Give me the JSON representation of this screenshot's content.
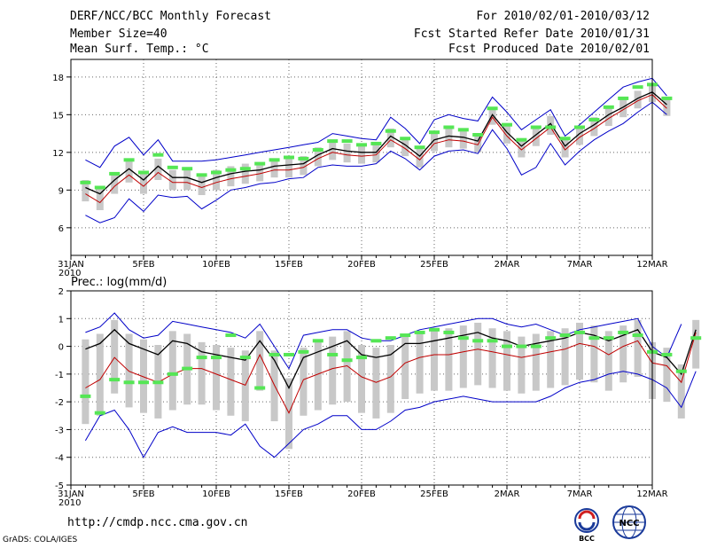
{
  "header": {
    "title": "DERF/NCC/BCC Monthly Forecast",
    "member_size": "Member Size=40",
    "variable": "Mean Surf. Temp.: °C",
    "period": "For 2010/02/01-2010/03/12",
    "started": "Fcst Started Refer Date 2010/01/31",
    "produced": "Fcst Produced Date 2010/02/01"
  },
  "footer": {
    "url": "http://cmdp.ncc.cma.gov.cn",
    "grads": "GrADS: COLA/IGES",
    "logo_bcc": "BCC",
    "logo_ncc": "NCC"
  },
  "colors": {
    "mean": "#000000",
    "median": "#c00000",
    "bounds": "#0000c8",
    "box": "#c8c8c8",
    "obs": "#55e655",
    "grid": "#666666"
  },
  "chart_data": [
    {
      "type": "line",
      "title": "",
      "ylabel": "Mean Surf. Temp.: °C",
      "ylim": [
        3.8,
        19.4
      ],
      "yticks": [
        6,
        9,
        12,
        15,
        18
      ],
      "x": "days from 2010-01-31 (0..40)",
      "xticks": [
        0,
        5,
        10,
        15,
        20,
        25,
        30,
        35,
        40
      ],
      "xtick_labels": [
        "31JAN",
        "5FEB",
        "10FEB",
        "15FEB",
        "20FEB",
        "25FEB",
        "2MAR",
        "7MAR",
        "12MAR"
      ],
      "xtick_year": "2010",
      "series": [
        {
          "name": "ensemble max",
          "color": "blue",
          "start": 1,
          "values": [
            11.4,
            10.8,
            12.5,
            13.2,
            11.8,
            13.0,
            11.3,
            11.3,
            11.3,
            11.4,
            11.6,
            11.8,
            12.0,
            12.2,
            12.4,
            12.6,
            12.8,
            13.5,
            13.3,
            13.1,
            13.0,
            14.8,
            13.9,
            12.7,
            14.6,
            15.0,
            14.7,
            14.5,
            16.4,
            15.2,
            13.8,
            14.6,
            15.4,
            13.3,
            14.2,
            15.2,
            16.2,
            17.2,
            17.6,
            17.9,
            16.5
          ]
        },
        {
          "name": "ensemble mean",
          "color": "black",
          "start": 1,
          "values": [
            9.2,
            8.7,
            9.8,
            10.7,
            9.8,
            10.9,
            10.0,
            10.0,
            9.6,
            10.0,
            10.3,
            10.5,
            10.6,
            10.9,
            11.0,
            11.1,
            11.8,
            12.3,
            12.1,
            12.0,
            12.0,
            13.3,
            12.6,
            11.7,
            13.0,
            13.3,
            13.2,
            12.9,
            15.0,
            13.6,
            12.5,
            13.4,
            14.3,
            12.5,
            13.5,
            14.2,
            15.0,
            15.6,
            16.3,
            16.8,
            15.8
          ]
        },
        {
          "name": "ensemble median",
          "color": "red",
          "start": 1,
          "values": [
            8.7,
            8.0,
            9.3,
            10.2,
            9.3,
            10.4,
            9.6,
            9.6,
            9.2,
            9.6,
            9.9,
            10.1,
            10.3,
            10.6,
            10.6,
            10.8,
            11.5,
            12.0,
            11.8,
            11.7,
            11.8,
            13.0,
            12.3,
            11.4,
            12.7,
            13.0,
            12.9,
            12.6,
            14.8,
            13.3,
            12.2,
            13.1,
            14.0,
            12.2,
            13.2,
            13.9,
            14.7,
            15.4,
            16.1,
            16.6,
            15.5
          ]
        },
        {
          "name": "ensemble min",
          "color": "blue",
          "start": 1,
          "values": [
            7.0,
            6.4,
            6.8,
            8.3,
            7.3,
            8.6,
            8.4,
            8.5,
            7.5,
            8.2,
            9.0,
            9.2,
            9.5,
            9.6,
            9.9,
            10.0,
            10.8,
            11.0,
            10.9,
            10.9,
            11.1,
            12.1,
            11.5,
            10.6,
            11.7,
            12.1,
            12.2,
            11.9,
            13.8,
            12.3,
            10.2,
            10.8,
            12.7,
            11.0,
            12.1,
            13.0,
            13.7,
            14.3,
            15.2,
            16.0,
            15.0
          ]
        },
        {
          "name": "observation",
          "color": "green",
          "start": 1,
          "marker": "dash",
          "values": [
            9.6,
            9.2,
            10.3,
            11.4,
            10.4,
            11.8,
            10.8,
            10.7,
            10.2,
            10.4,
            10.6,
            10.7,
            11.1,
            11.4,
            11.6,
            11.5,
            12.2,
            12.9,
            12.9,
            12.6,
            12.7,
            13.7,
            13.1,
            12.4,
            13.6,
            14.0,
            13.8,
            13.4,
            15.5,
            14.2,
            13.0,
            14.0,
            14.0,
            13.1,
            14.0,
            14.6,
            15.6,
            16.3,
            17.2,
            17.4,
            16.3
          ]
        }
      ]
    },
    {
      "type": "line",
      "title": "Prec.: log(mm/d)",
      "ylabel": "Prec.: log(mm/d)",
      "ylim": [
        -5,
        2
      ],
      "yticks": [
        -5,
        -4,
        -3,
        -2,
        -1,
        0,
        1,
        2
      ],
      "x": "days from 2010-01-31 (0..40)",
      "xticks": [
        0,
        5,
        10,
        15,
        20,
        25,
        30,
        35,
        40
      ],
      "xtick_labels": [
        "31JAN",
        "5FEB",
        "10FEB",
        "15FEB",
        "20FEB",
        "25FEB",
        "2MAR",
        "7MAR",
        "12MAR"
      ],
      "xtick_year": "2010",
      "series": [
        {
          "name": "ensemble max",
          "color": "blue",
          "start": 1,
          "values": [
            0.5,
            0.7,
            1.2,
            0.6,
            0.3,
            0.4,
            0.9,
            0.8,
            0.7,
            0.6,
            0.5,
            0.3,
            0.8,
            0.0,
            -0.8,
            0.4,
            0.5,
            0.6,
            0.6,
            0.3,
            0.2,
            0.2,
            0.4,
            0.6,
            0.7,
            0.8,
            0.9,
            1.0,
            1.0,
            0.8,
            0.7,
            0.8,
            0.6,
            0.4,
            0.6,
            0.7,
            0.8,
            0.9,
            1.0,
            0.0,
            -0.4,
            0.8
          ]
        },
        {
          "name": "ensemble mean",
          "color": "black",
          "start": 1,
          "values": [
            -0.1,
            0.1,
            0.6,
            0.1,
            -0.1,
            -0.3,
            0.2,
            0.1,
            -0.2,
            -0.3,
            -0.4,
            -0.5,
            0.2,
            -0.5,
            -1.5,
            -0.4,
            -0.2,
            0.0,
            0.2,
            -0.3,
            -0.4,
            -0.3,
            0.1,
            0.1,
            0.2,
            0.3,
            0.4,
            0.5,
            0.3,
            0.2,
            0.0,
            0.1,
            0.2,
            0.3,
            0.5,
            0.4,
            0.2,
            0.4,
            0.6,
            -0.2,
            -0.4,
            -1.0,
            0.6
          ]
        },
        {
          "name": "ensemble median",
          "color": "red",
          "start": 1,
          "values": [
            -1.5,
            -1.2,
            -0.4,
            -0.9,
            -1.1,
            -1.3,
            -1.0,
            -0.8,
            -0.8,
            -1.0,
            -1.2,
            -1.4,
            -0.3,
            -1.4,
            -2.4,
            -1.2,
            -1.0,
            -0.8,
            -0.7,
            -1.1,
            -1.3,
            -1.1,
            -0.6,
            -0.4,
            -0.3,
            -0.3,
            -0.2,
            -0.1,
            -0.2,
            -0.3,
            -0.4,
            -0.3,
            -0.2,
            -0.1,
            0.1,
            0.0,
            -0.3,
            0.0,
            0.2,
            -0.6,
            -0.7,
            -1.3,
            0.5
          ]
        },
        {
          "name": "ensemble min",
          "color": "blue",
          "start": 1,
          "values": [
            -3.4,
            -2.5,
            -2.3,
            -3.0,
            -4.0,
            -3.1,
            -2.9,
            -3.1,
            -3.1,
            -3.1,
            -3.2,
            -2.8,
            -3.6,
            -4.0,
            -3.5,
            -3.0,
            -2.8,
            -2.5,
            -2.5,
            -3.0,
            -3.0,
            -2.7,
            -2.3,
            -2.2,
            -2.0,
            -1.9,
            -1.8,
            -1.9,
            -2.0,
            -2.0,
            -2.0,
            -2.0,
            -1.8,
            -1.5,
            -1.3,
            -1.2,
            -1.0,
            -0.9,
            -1.0,
            -1.2,
            -1.5,
            -2.2,
            -0.9
          ]
        },
        {
          "name": "observation",
          "color": "green",
          "start": 1,
          "marker": "dash",
          "values": [
            -1.8,
            -2.4,
            -1.2,
            -1.3,
            -1.3,
            -1.3,
            -1.0,
            -0.8,
            -0.4,
            -0.4,
            0.4,
            -0.4,
            -1.5,
            -0.3,
            -0.3,
            -0.2,
            0.2,
            -0.3,
            -0.5,
            -0.4,
            0.2,
            0.3,
            0.4,
            0.5,
            0.6,
            0.5,
            0.3,
            0.2,
            0.2,
            0.0,
            0.0,
            0.0,
            0.3,
            0.4,
            0.5,
            0.3,
            0.3,
            0.5,
            0.4,
            -0.2,
            -0.3,
            -0.9,
            0.3
          ]
        }
      ]
    }
  ]
}
